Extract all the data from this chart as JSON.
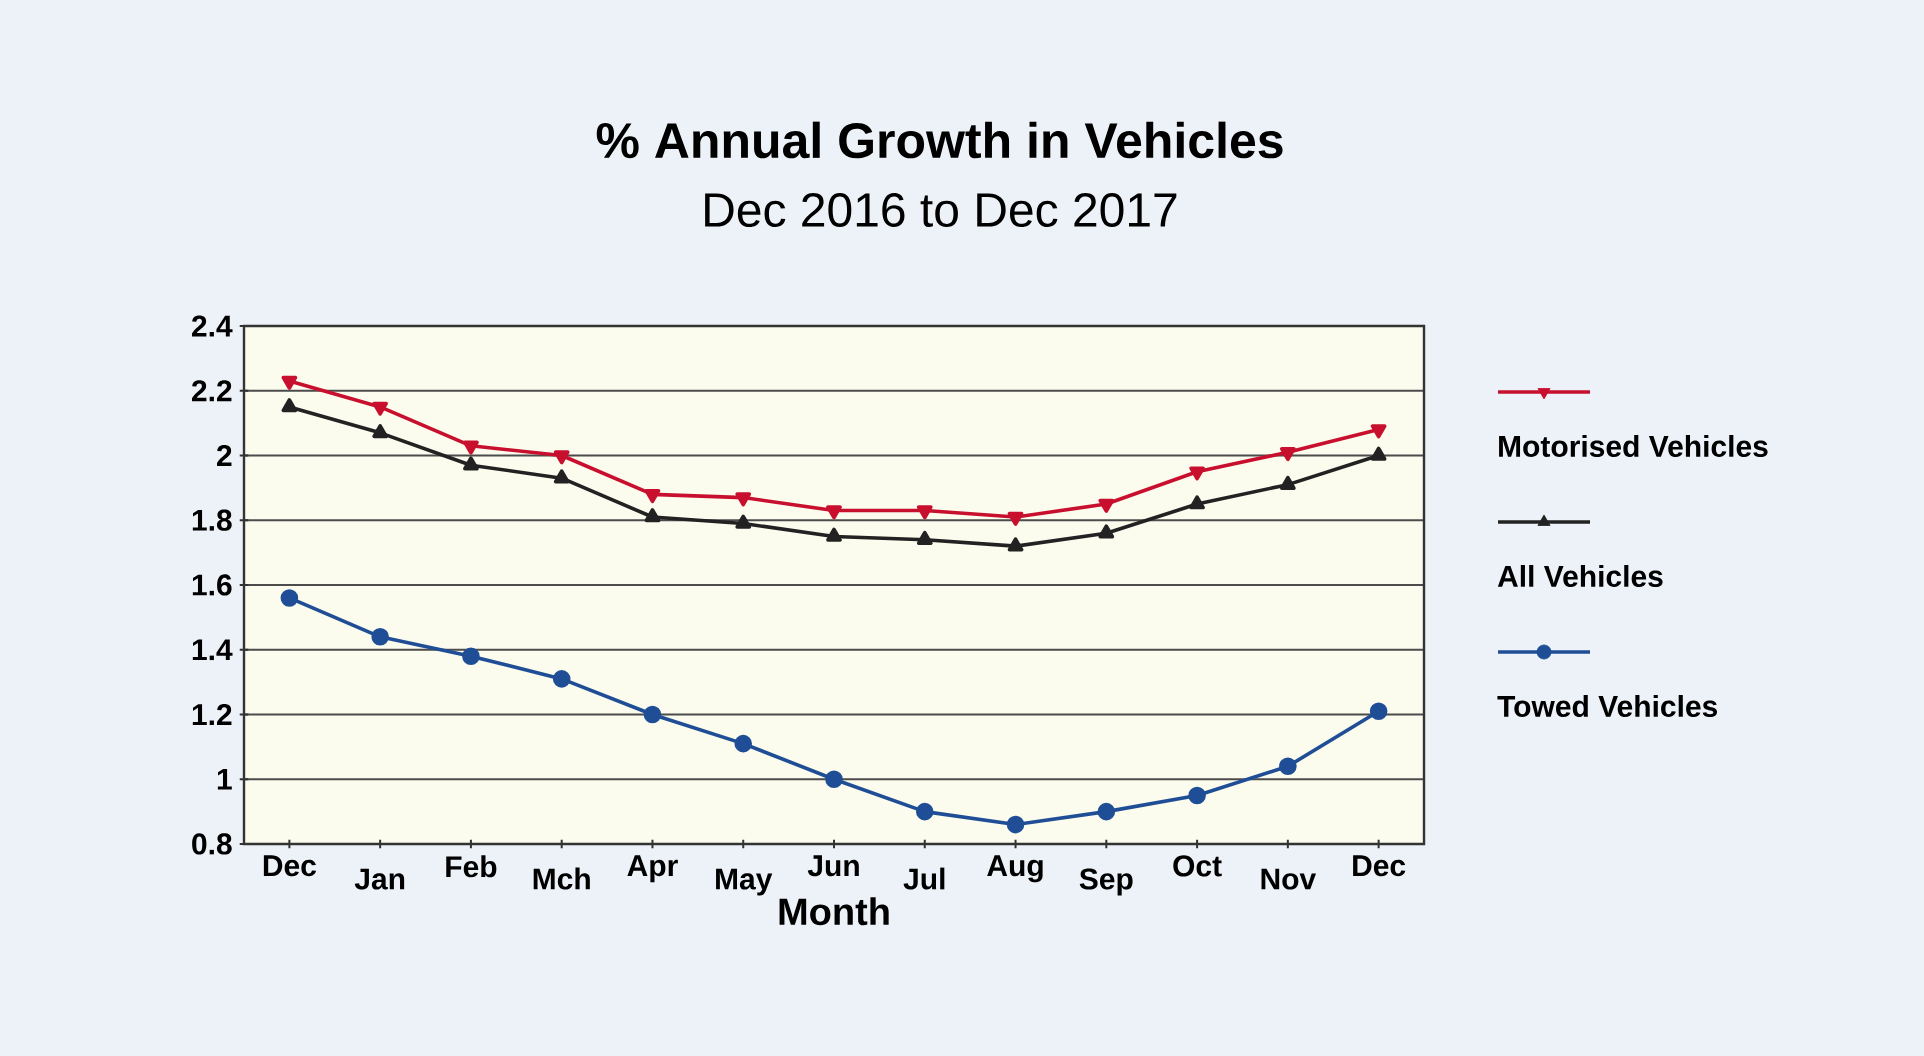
{
  "chart_data": {
    "type": "line",
    "title": "% Annual Growth in Vehicles",
    "subtitle": "Dec 2016  to Dec  2017",
    "xlabel": "Month",
    "categories": [
      "Dec",
      "Jan",
      "Feb",
      "Mch",
      "Apr",
      "May",
      "Jun",
      "Jul",
      "Aug",
      "Sep",
      "Oct",
      "Nov",
      "Dec"
    ],
    "series": [
      {
        "name": "Motorised Vehicles",
        "color": "#c8102e",
        "marker": "triangle-down",
        "values": [
          2.23,
          2.15,
          2.03,
          2.0,
          1.88,
          1.87,
          1.83,
          1.83,
          1.81,
          1.85,
          1.95,
          2.01,
          2.08
        ]
      },
      {
        "name": "All Vehicles",
        "color": "#222222",
        "marker": "triangle",
        "values": [
          2.15,
          2.07,
          1.97,
          1.93,
          1.81,
          1.79,
          1.75,
          1.74,
          1.72,
          1.76,
          1.85,
          1.91,
          2.0
        ]
      },
      {
        "name": "Towed Vehicles",
        "color": "#1f4e96",
        "marker": "circle",
        "values": [
          1.56,
          1.44,
          1.38,
          1.31,
          1.2,
          1.11,
          1.0,
          0.9,
          0.86,
          0.9,
          0.95,
          1.04,
          1.21
        ]
      }
    ],
    "ylim": [
      0.8,
      2.4
    ],
    "yticks": [
      0.8,
      1,
      1.2,
      1.4,
      1.6,
      1.8,
      2,
      2.2,
      2.4
    ],
    "grid": "y",
    "legend": "right",
    "line_style": "solid"
  }
}
